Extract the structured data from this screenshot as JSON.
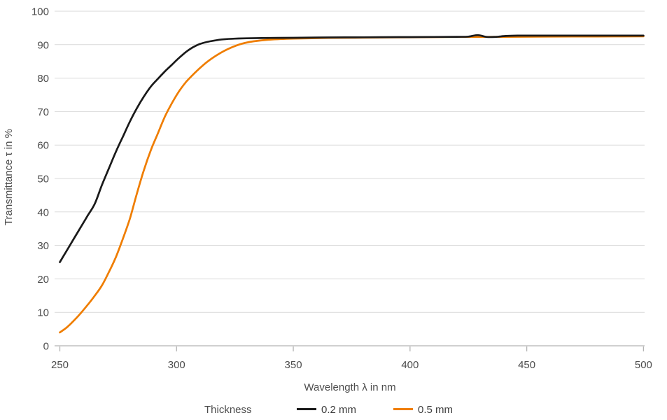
{
  "figure": {
    "background": "#ffffff",
    "grid_color": "#d9d9d9",
    "axis_color": "#b3b3b3",
    "label_color": "#4d4d4d"
  },
  "legend": {
    "title": "Thickness",
    "items": [
      {
        "label": "0.2 mm",
        "color": "#1a1a1a"
      },
      {
        "label": "0.5 mm",
        "color": "#ef7d00"
      }
    ]
  },
  "chart_data": {
    "type": "line",
    "title": "",
    "xlabel": "Wavelength λ in nm",
    "ylabel": "Transmittance τ in %",
    "xlim": [
      250,
      500
    ],
    "ylim": [
      0,
      100
    ],
    "x_ticks": [
      250,
      300,
      350,
      400,
      450,
      500
    ],
    "y_ticks": [
      0,
      10,
      20,
      30,
      40,
      50,
      60,
      70,
      80,
      90,
      100
    ],
    "grid": "horizontal",
    "legend_position": "bottom",
    "legend_title": "Thickness",
    "series": [
      {
        "name": "0.2 mm",
        "color": "#1a1a1a",
        "points": [
          [
            250,
            25
          ],
          [
            253,
            28.5
          ],
          [
            256,
            32
          ],
          [
            259,
            35.5
          ],
          [
            262,
            39
          ],
          [
            265,
            42.5
          ],
          [
            268,
            48
          ],
          [
            271,
            53
          ],
          [
            274,
            58
          ],
          [
            277,
            62.5
          ],
          [
            280,
            67
          ],
          [
            283,
            71
          ],
          [
            286,
            74.5
          ],
          [
            289,
            77.5
          ],
          [
            292,
            79.8
          ],
          [
            295,
            82
          ],
          [
            298,
            84
          ],
          [
            301,
            86
          ],
          [
            304,
            87.8
          ],
          [
            307,
            89.2
          ],
          [
            310,
            90.2
          ],
          [
            313,
            90.8
          ],
          [
            316,
            91.2
          ],
          [
            320,
            91.6
          ],
          [
            325,
            91.8
          ],
          [
            330,
            91.9
          ],
          [
            340,
            92
          ],
          [
            350,
            92.05
          ],
          [
            365,
            92.15
          ],
          [
            380,
            92.2
          ],
          [
            395,
            92.25
          ],
          [
            410,
            92.3
          ],
          [
            420,
            92.35
          ],
          [
            425,
            92.4
          ],
          [
            429,
            92.85
          ],
          [
            433,
            92.3
          ],
          [
            437,
            92.35
          ],
          [
            441,
            92.6
          ],
          [
            446,
            92.7
          ],
          [
            455,
            92.7
          ],
          [
            470,
            92.7
          ],
          [
            485,
            92.7
          ],
          [
            500,
            92.7
          ]
        ]
      },
      {
        "name": "0.5 mm",
        "color": "#ef7d00",
        "points": [
          [
            250,
            4
          ],
          [
            253,
            5.5
          ],
          [
            256,
            7.5
          ],
          [
            259,
            9.8
          ],
          [
            262,
            12.3
          ],
          [
            265,
            15
          ],
          [
            268,
            18
          ],
          [
            271,
            22
          ],
          [
            274,
            26.5
          ],
          [
            277,
            32
          ],
          [
            280,
            38
          ],
          [
            283,
            45.5
          ],
          [
            286,
            52.5
          ],
          [
            289,
            58.5
          ],
          [
            292,
            63.5
          ],
          [
            295,
            68.5
          ],
          [
            298,
            72.5
          ],
          [
            301,
            76
          ],
          [
            304,
            78.8
          ],
          [
            307,
            81
          ],
          [
            310,
            83
          ],
          [
            313,
            84.8
          ],
          [
            316,
            86.3
          ],
          [
            320,
            88
          ],
          [
            324,
            89.3
          ],
          [
            328,
            90.3
          ],
          [
            333,
            91
          ],
          [
            340,
            91.5
          ],
          [
            350,
            91.8
          ],
          [
            365,
            92
          ],
          [
            380,
            92.1
          ],
          [
            400,
            92.2
          ],
          [
            420,
            92.3
          ],
          [
            440,
            92.35
          ],
          [
            460,
            92.4
          ],
          [
            480,
            92.45
          ],
          [
            500,
            92.5
          ]
        ]
      }
    ]
  }
}
